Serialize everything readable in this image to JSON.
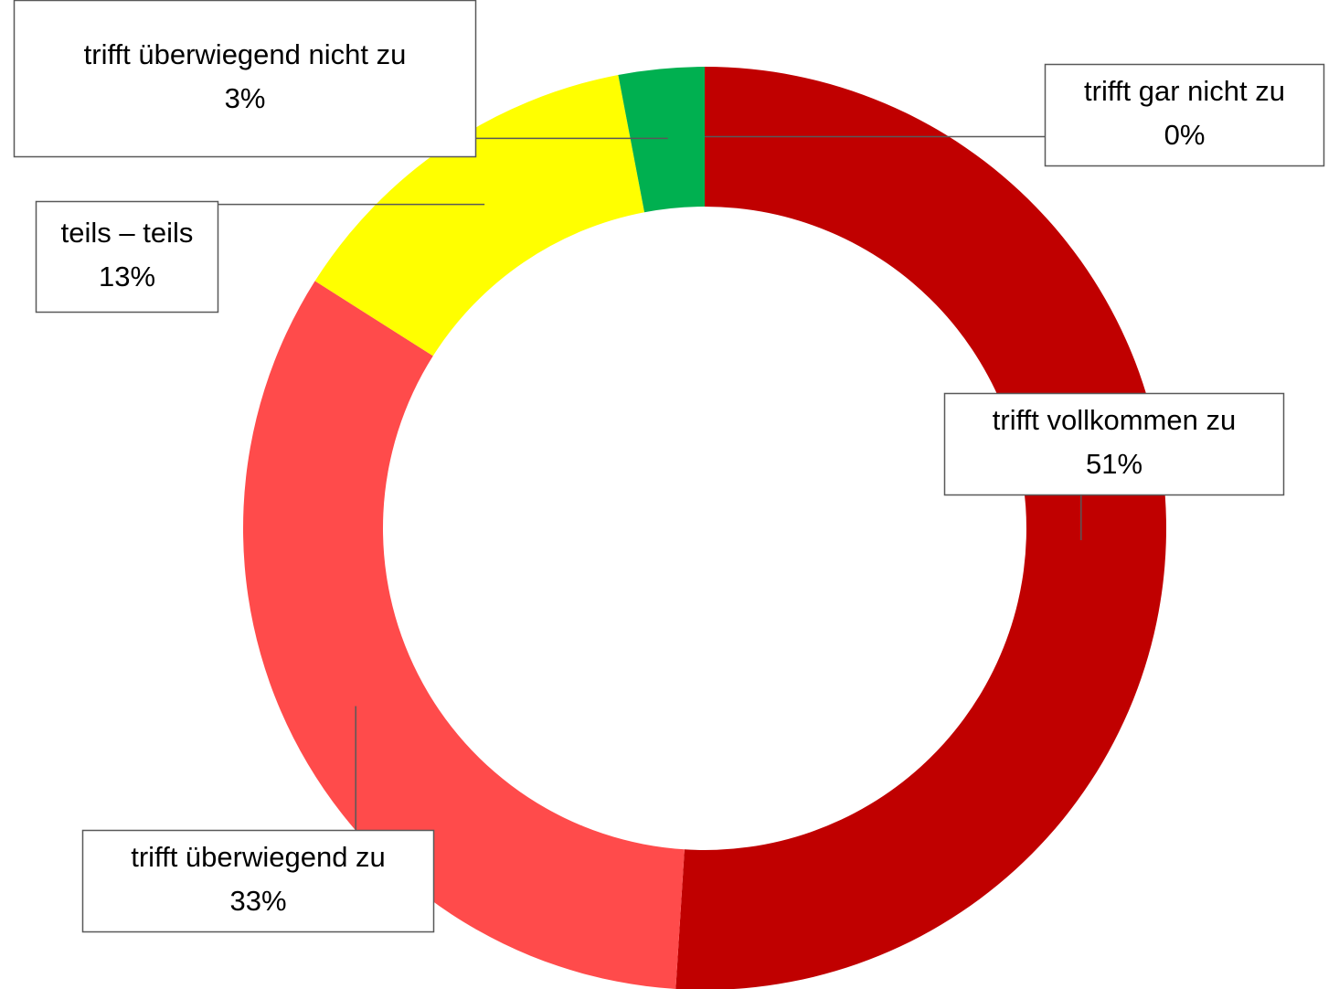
{
  "chart_data": {
    "type": "donut",
    "categories": [
      "trifft vollkommen zu",
      "trifft überwiegend zu",
      "teils – teils",
      "trifft überwiegend nicht zu",
      "trifft gar nicht zu"
    ],
    "values": [
      51,
      33,
      13,
      3,
      0
    ],
    "value_labels": [
      "51%",
      "33%",
      "13%",
      "3%",
      "0%"
    ],
    "colors": [
      "#c00000",
      "#ff4b4b",
      "#ffff00",
      "#00b050",
      "#7030a0"
    ]
  }
}
